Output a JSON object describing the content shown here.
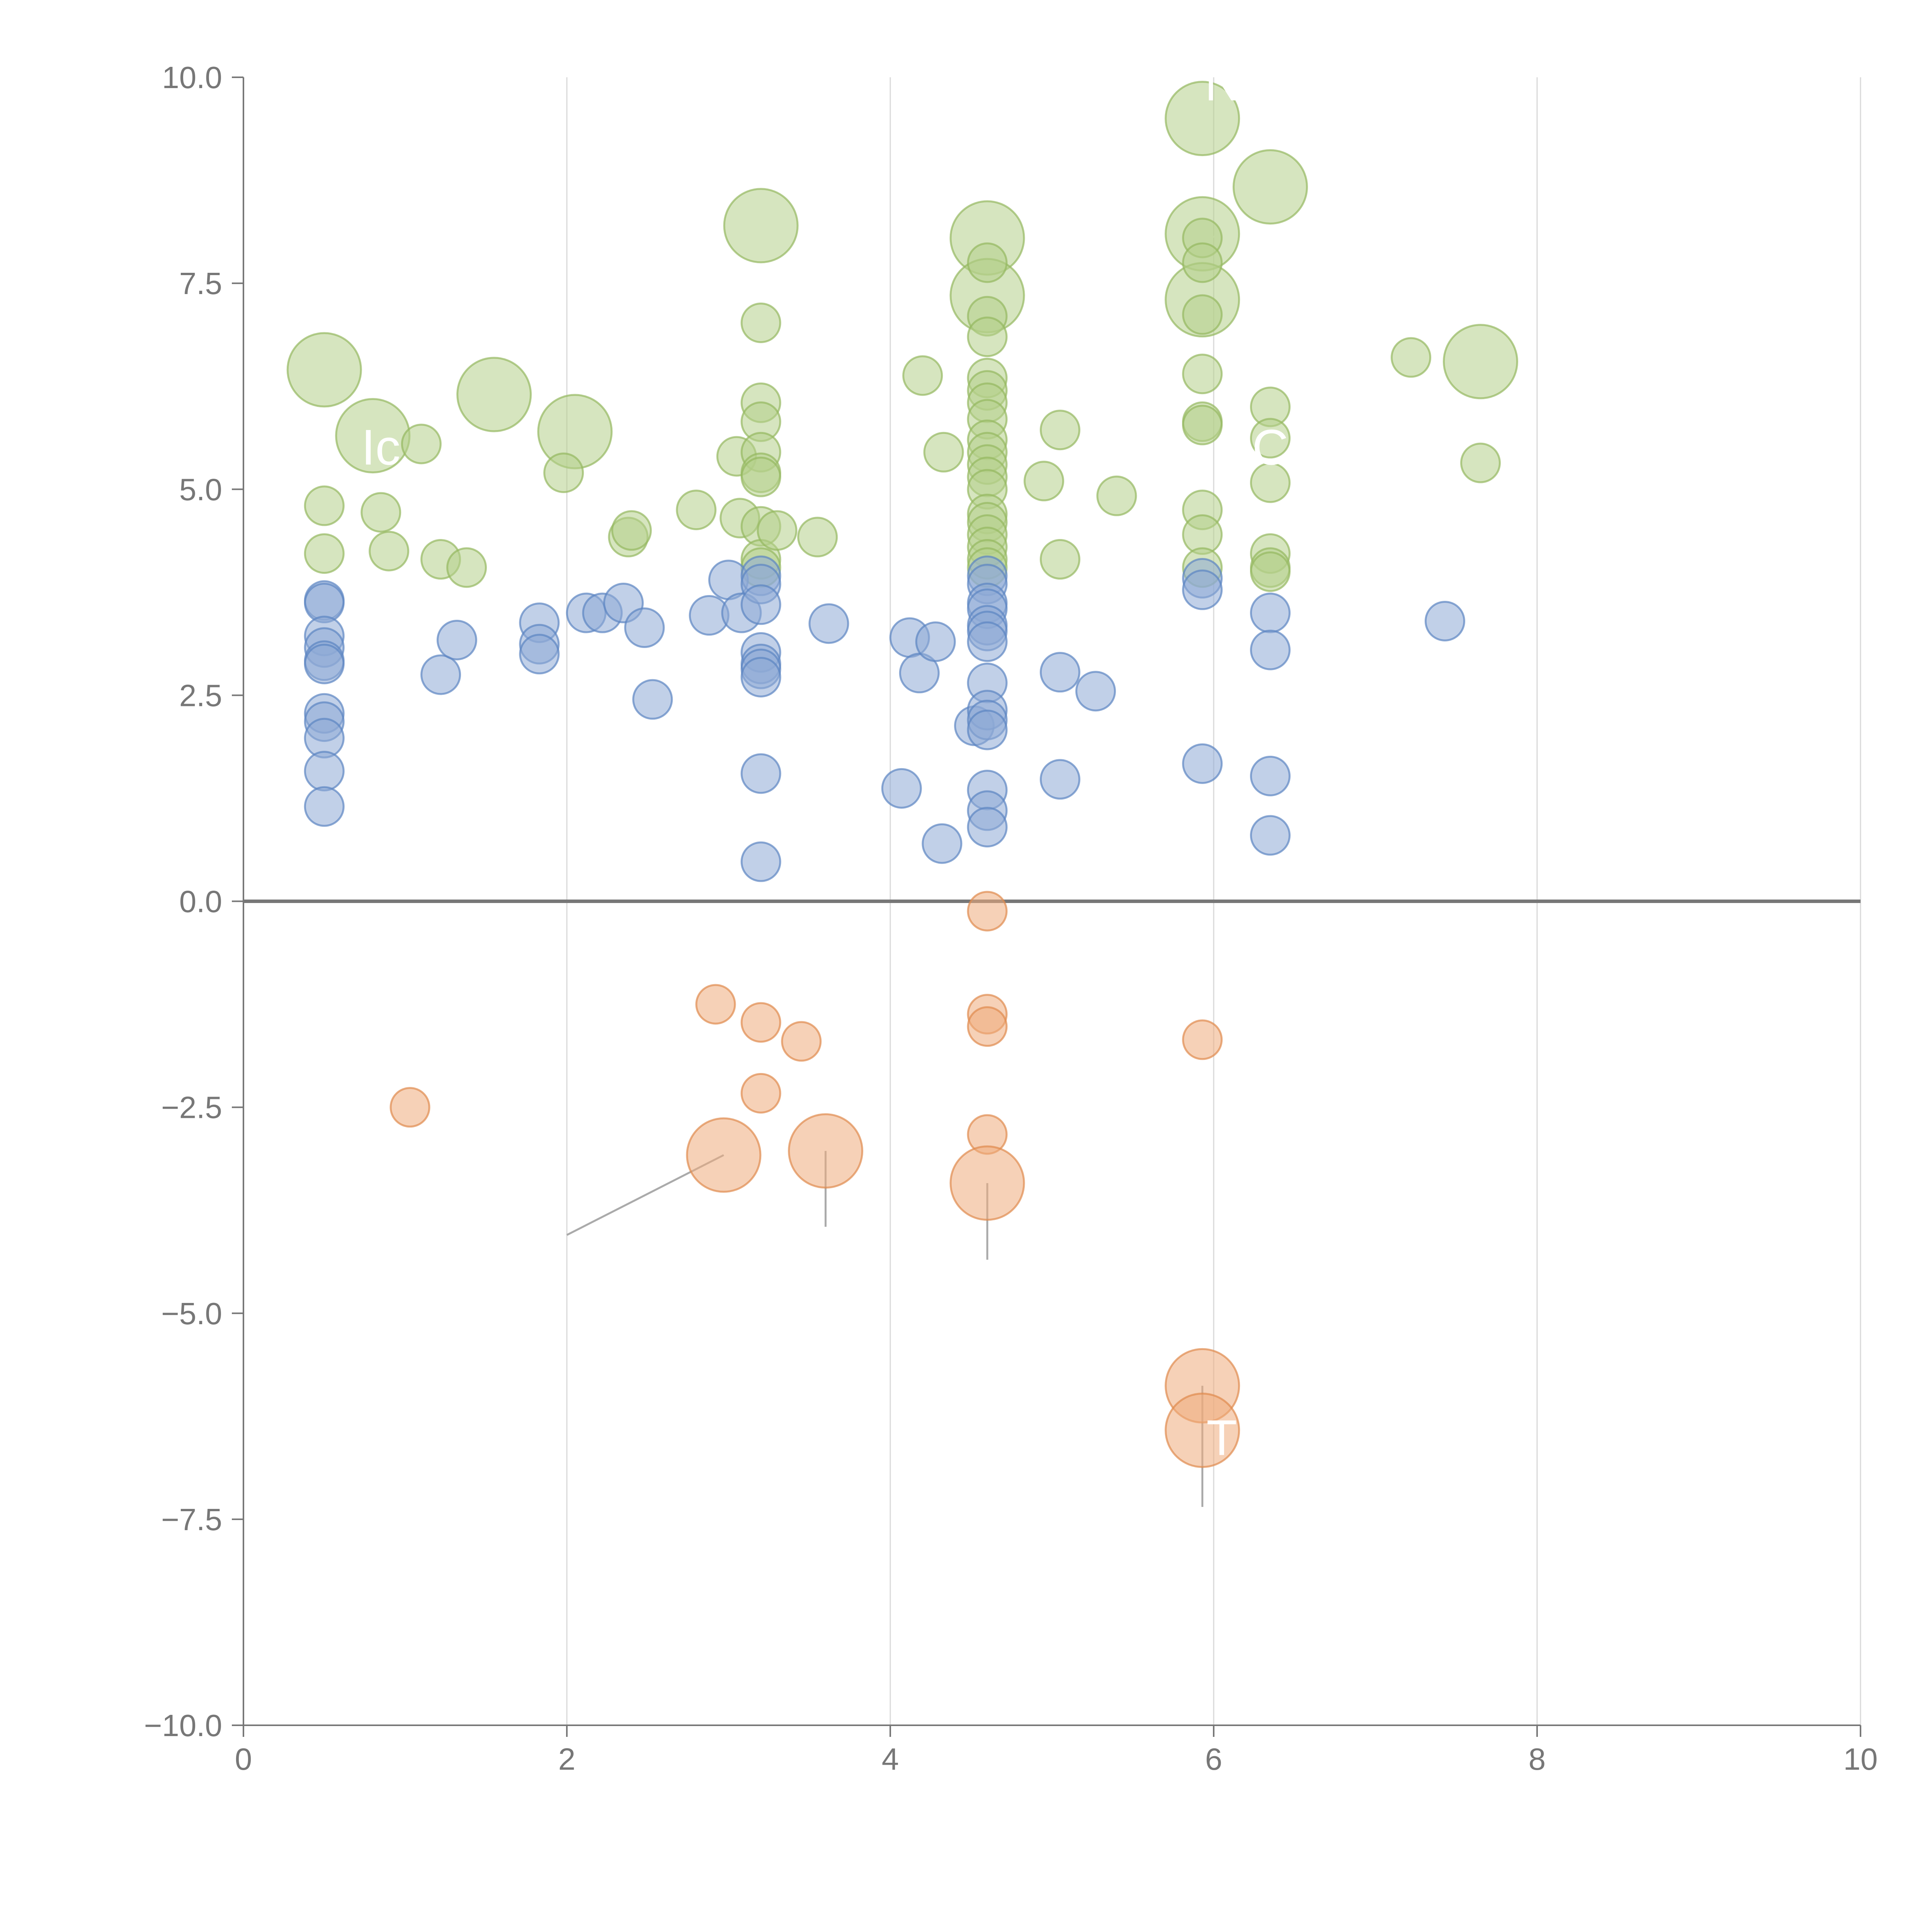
{
  "chart_data": {
    "type": "scatter",
    "title": "",
    "xlabel": "",
    "ylabel": "",
    "xlim": [
      0,
      10
    ],
    "ylim": [
      -10,
      10
    ],
    "x_ticks": [
      "0",
      "2",
      "4",
      "6",
      "8",
      "10"
    ],
    "y_ticks": [
      "10.0",
      "7.5",
      "5.0",
      "2.5",
      "0.0",
      "−2.5",
      "−5.0",
      "−7.5",
      "−10.0"
    ],
    "x_tick_values": [
      0,
      2,
      4,
      6,
      8,
      10
    ],
    "y_tick_values": [
      10,
      7.5,
      5,
      2.5,
      0,
      -2.5,
      -5,
      -7.5,
      -10
    ],
    "grid": "vertical",
    "colors": {
      "green_fill": "#b5cf8a",
      "green_stroke": "#94b85f",
      "blue_fill": "#8eaad6",
      "blue_stroke": "#5b84c2",
      "orange_fill": "#eeab7c",
      "orange_stroke": "#df8a4d",
      "axis": "#777777",
      "grid": "#d9d9d9"
    },
    "series": [
      {
        "name": "green",
        "color": "green",
        "points": [
          [
            0.5,
            6.45,
            2
          ],
          [
            0.8,
            5.65,
            2
          ],
          [
            1.55,
            6.15,
            2
          ],
          [
            2.05,
            5.7,
            2
          ],
          [
            3.2,
            8.2,
            2
          ],
          [
            4.6,
            8.05,
            2
          ],
          [
            4.6,
            7.35,
            2
          ],
          [
            5.93,
            9.5,
            2
          ],
          [
            5.93,
            8.1,
            2
          ],
          [
            5.93,
            7.3,
            2
          ],
          [
            6.35,
            8.67,
            2
          ],
          [
            7.65,
            6.55,
            2
          ],
          [
            0.5,
            4.8,
            1
          ],
          [
            0.5,
            4.22,
            1
          ],
          [
            0.85,
            4.72,
            1
          ],
          [
            0.9,
            4.25,
            1
          ],
          [
            1.1,
            5.55,
            1
          ],
          [
            1.22,
            4.15,
            1
          ],
          [
            1.38,
            4.05,
            1
          ],
          [
            1.98,
            5.2,
            1
          ],
          [
            2.38,
            4.42,
            1
          ],
          [
            2.4,
            4.5,
            1
          ],
          [
            2.8,
            4.75,
            1
          ],
          [
            3.07,
            4.65,
            1
          ],
          [
            3.05,
            5.4,
            1
          ],
          [
            3.2,
            7.02,
            1
          ],
          [
            3.2,
            6.05,
            1
          ],
          [
            3.2,
            5.82,
            1
          ],
          [
            3.2,
            5.45,
            1
          ],
          [
            3.2,
            5.2,
            1
          ],
          [
            3.2,
            5.15,
            1
          ],
          [
            3.2,
            4.55,
            1
          ],
          [
            3.2,
            4.15,
            1
          ],
          [
            3.2,
            4.05,
            1
          ],
          [
            3.3,
            4.5,
            1
          ],
          [
            3.55,
            4.42,
            1
          ],
          [
            4.2,
            6.38,
            1
          ],
          [
            4.33,
            5.45,
            1
          ],
          [
            4.6,
            7.75,
            1
          ],
          [
            4.6,
            7.1,
            1
          ],
          [
            4.6,
            6.85,
            1
          ],
          [
            4.6,
            6.35,
            1
          ],
          [
            4.6,
            6.2,
            1
          ],
          [
            4.6,
            6.05,
            1
          ],
          [
            4.6,
            5.85,
            1
          ],
          [
            4.6,
            5.6,
            1
          ],
          [
            4.6,
            5.45,
            1
          ],
          [
            4.6,
            5.3,
            1
          ],
          [
            4.6,
            5.15,
            1
          ],
          [
            4.6,
            5.0,
            1
          ],
          [
            4.6,
            4.7,
            1
          ],
          [
            4.6,
            4.6,
            1
          ],
          [
            4.6,
            4.45,
            1
          ],
          [
            4.6,
            4.3,
            1
          ],
          [
            4.6,
            4.15,
            1
          ],
          [
            4.6,
            4.05,
            1
          ],
          [
            4.95,
            5.1,
            1
          ],
          [
            5.05,
            5.72,
            1
          ],
          [
            5.05,
            4.15,
            1
          ],
          [
            5.4,
            4.92,
            1
          ],
          [
            5.93,
            8.05,
            1
          ],
          [
            5.93,
            7.75,
            1
          ],
          [
            5.93,
            7.12,
            1
          ],
          [
            5.93,
            6.4,
            1
          ],
          [
            5.93,
            5.82,
            1
          ],
          [
            5.93,
            5.78,
            1
          ],
          [
            5.93,
            4.75,
            1
          ],
          [
            5.93,
            4.45,
            1
          ],
          [
            5.93,
            4.05,
            1
          ],
          [
            6.35,
            6.0,
            1
          ],
          [
            6.35,
            5.62,
            1
          ],
          [
            6.35,
            5.08,
            1
          ],
          [
            6.35,
            4.22,
            1
          ],
          [
            6.35,
            4.05,
            1
          ],
          [
            6.35,
            4.0,
            1
          ],
          [
            7.22,
            6.6,
            1
          ],
          [
            7.65,
            5.32,
            1
          ]
        ]
      },
      {
        "name": "blue",
        "color": "blue",
        "points": [
          [
            0.5,
            3.65,
            1
          ],
          [
            0.5,
            3.62,
            1
          ],
          [
            0.5,
            3.22,
            1
          ],
          [
            0.5,
            3.08,
            1
          ],
          [
            0.5,
            2.92,
            1
          ],
          [
            0.5,
            2.88,
            1
          ],
          [
            0.5,
            2.28,
            1
          ],
          [
            0.5,
            2.18,
            1
          ],
          [
            0.5,
            1.98,
            1
          ],
          [
            0.5,
            1.58,
            1
          ],
          [
            0.5,
            1.15,
            1
          ],
          [
            1.22,
            2.75,
            1
          ],
          [
            1.32,
            3.17,
            1
          ],
          [
            1.83,
            3.38,
            1
          ],
          [
            1.83,
            3.12,
            1
          ],
          [
            1.83,
            3.0,
            1
          ],
          [
            2.12,
            3.5,
            1
          ],
          [
            2.22,
            3.5,
            1
          ],
          [
            2.35,
            3.62,
            1
          ],
          [
            2.48,
            3.32,
            1
          ],
          [
            2.53,
            2.45,
            1
          ],
          [
            2.88,
            3.47,
            1
          ],
          [
            3.0,
            3.9,
            1
          ],
          [
            3.08,
            3.5,
            1
          ],
          [
            3.2,
            3.95,
            1
          ],
          [
            3.2,
            3.85,
            1
          ],
          [
            3.2,
            3.6,
            1
          ],
          [
            3.2,
            3.02,
            1
          ],
          [
            3.2,
            2.88,
            1
          ],
          [
            3.2,
            2.82,
            1
          ],
          [
            3.2,
            2.72,
            1
          ],
          [
            3.2,
            1.55,
            1
          ],
          [
            3.2,
            0.48,
            1
          ],
          [
            3.62,
            3.37,
            1
          ],
          [
            4.07,
            1.37,
            1
          ],
          [
            4.12,
            3.2,
            1
          ],
          [
            4.18,
            2.77,
            1
          ],
          [
            4.28,
            3.15,
            1
          ],
          [
            4.32,
            0.7,
            1
          ],
          [
            4.52,
            2.13,
            1
          ],
          [
            4.6,
            3.95,
            1
          ],
          [
            4.6,
            3.85,
            1
          ],
          [
            4.6,
            3.62,
            1
          ],
          [
            4.6,
            3.55,
            1
          ],
          [
            4.6,
            3.35,
            1
          ],
          [
            4.6,
            3.28,
            1
          ],
          [
            4.6,
            3.15,
            1
          ],
          [
            4.6,
            2.65,
            1
          ],
          [
            4.6,
            2.32,
            1
          ],
          [
            4.6,
            2.2,
            1
          ],
          [
            4.6,
            2.08,
            1
          ],
          [
            4.6,
            1.35,
            1
          ],
          [
            4.6,
            1.1,
            1
          ],
          [
            4.6,
            0.9,
            1
          ],
          [
            5.05,
            2.78,
            1
          ],
          [
            5.05,
            1.48,
            1
          ],
          [
            5.27,
            2.55,
            1
          ],
          [
            5.93,
            3.92,
            1
          ],
          [
            5.93,
            3.78,
            1
          ],
          [
            5.93,
            1.67,
            1
          ],
          [
            6.35,
            3.5,
            1
          ],
          [
            6.35,
            3.05,
            1
          ],
          [
            6.35,
            1.52,
            1
          ],
          [
            6.35,
            0.8,
            1
          ],
          [
            7.43,
            3.4,
            1
          ]
        ]
      },
      {
        "name": "orange",
        "color": "orange",
        "points": [
          [
            1.03,
            -2.5,
            1
          ],
          [
            2.92,
            -1.25,
            1
          ],
          [
            3.2,
            -1.47,
            1
          ],
          [
            3.2,
            -2.33,
            1
          ],
          [
            3.45,
            -1.7,
            1
          ],
          [
            4.6,
            -0.12,
            1
          ],
          [
            4.6,
            -1.37,
            1
          ],
          [
            4.6,
            -1.52,
            1
          ],
          [
            4.6,
            -2.83,
            1
          ],
          [
            5.93,
            -1.68,
            1
          ],
          [
            2.97,
            -3.08,
            2
          ],
          [
            3.6,
            -3.03,
            2
          ],
          [
            4.6,
            -3.42,
            2
          ],
          [
            5.93,
            -5.88,
            2
          ],
          [
            5.93,
            -6.42,
            2
          ]
        ]
      }
    ],
    "annotations": [
      {
        "text": "NI",
        "x": 6.1,
        "y": 9.72
      },
      {
        "text": "C",
        "x": 6.35,
        "y": 5.3
      },
      {
        "text": "Ic",
        "x": 0.85,
        "y": 5.3
      },
      {
        "text": "T",
        "x": 6.05,
        "y": -6.72
      }
    ],
    "leaders": [
      {
        "from": [
          2.97,
          -3.08
        ],
        "to": [
          2.0,
          -4.05
        ],
        "style": "gray"
      },
      {
        "from": [
          3.6,
          -3.03
        ],
        "to": [
          3.6,
          -3.95
        ],
        "style": "gray"
      },
      {
        "from": [
          4.6,
          -3.42
        ],
        "to": [
          4.6,
          -4.35
        ],
        "style": "gray"
      },
      {
        "from": [
          5.93,
          -5.88
        ],
        "to": [
          5.93,
          -7.35
        ],
        "style": "gray"
      },
      {
        "from": [
          0.52,
          6.25
        ],
        "to": [
          0.57,
          6.45
        ],
        "style": "light"
      },
      {
        "from": [
          0.74,
          5.65
        ],
        "to": [
          0.8,
          5.75
        ],
        "style": "light"
      },
      {
        "from": [
          1.57,
          6.18
        ],
        "to": [
          1.72,
          6.3
        ],
        "style": "light"
      },
      {
        "from": [
          3.25,
          8.1
        ],
        "to": [
          3.35,
          8.2
        ],
        "style": "light"
      },
      {
        "from": [
          4.62,
          7.95
        ],
        "to": [
          4.68,
          8.1
        ],
        "style": "light"
      },
      {
        "from": [
          4.65,
          7.45
        ],
        "to": [
          4.75,
          7.55
        ],
        "style": "light"
      },
      {
        "from": [
          5.98,
          8.05
        ],
        "to": [
          6.05,
          8.1
        ],
        "style": "light"
      },
      {
        "from": [
          5.93,
          7.2
        ],
        "to": [
          5.9,
          7.35
        ],
        "style": "light"
      },
      {
        "from": [
          6.4,
          8.7
        ],
        "to": [
          6.6,
          8.8
        ],
        "style": "light"
      },
      {
        "from": [
          7.67,
          6.65
        ],
        "to": [
          7.62,
          6.85
        ],
        "style": "light"
      }
    ]
  }
}
